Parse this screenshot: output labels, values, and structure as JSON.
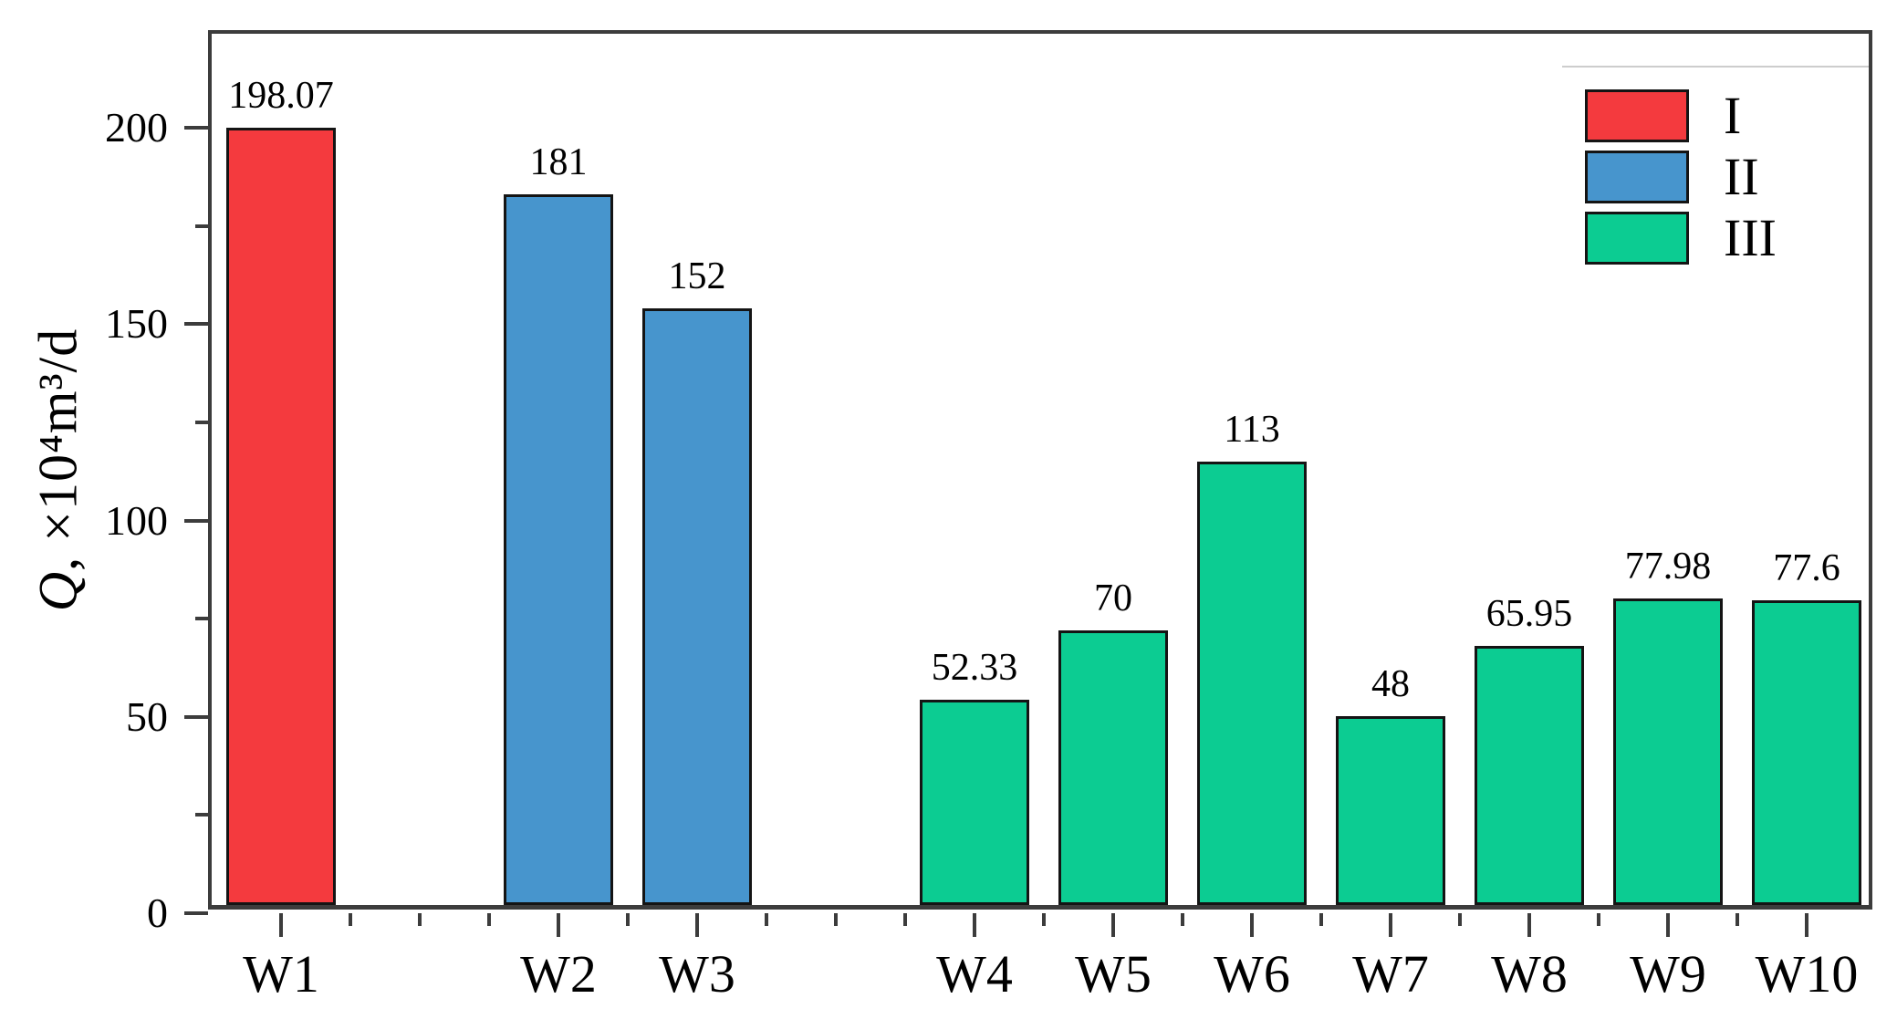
{
  "chart_data": {
    "type": "bar",
    "title": "",
    "ylabel": "Q, ×10⁴m³/d",
    "ylabel_q": "Q",
    "ylabel_rest": ",  ×10⁴m³/d",
    "x_axis": {
      "slots": 12,
      "minor_tick_divisions": 24
    },
    "y_axis": {
      "max": 224,
      "major_ticks": [
        0,
        50,
        100,
        150,
        200
      ],
      "minor_ticks": [
        25,
        75,
        125,
        175
      ],
      "major_tick_labels": [
        "0",
        "50",
        "100",
        "150",
        "200"
      ]
    },
    "categories": [
      "W1",
      "W2",
      "W3",
      "W4",
      "W5",
      "W6",
      "W7",
      "W8",
      "W9",
      "W10"
    ],
    "values": [
      198.07,
      181,
      152,
      52.33,
      70,
      113,
      48,
      65.95,
      77.98,
      77.6
    ],
    "bars": [
      {
        "category": "W1",
        "value": 198.07,
        "label": "198.07",
        "group": "I",
        "slot": 0
      },
      {
        "category": "W2",
        "value": 181,
        "label": "181",
        "group": "II",
        "slot": 2
      },
      {
        "category": "W3",
        "value": 152,
        "label": "152",
        "group": "II",
        "slot": 3
      },
      {
        "category": "W4",
        "value": 52.33,
        "label": "52.33",
        "group": "III",
        "slot": 5
      },
      {
        "category": "W5",
        "value": 70,
        "label": "70",
        "group": "III",
        "slot": 6
      },
      {
        "category": "W6",
        "value": 113,
        "label": "113",
        "group": "III",
        "slot": 7
      },
      {
        "category": "W7",
        "value": 48,
        "label": "48",
        "group": "III",
        "slot": 8
      },
      {
        "category": "W8",
        "value": 65.95,
        "label": "65.95",
        "group": "III",
        "slot": 9
      },
      {
        "category": "W9",
        "value": 77.98,
        "label": "77.98",
        "group": "III",
        "slot": 10
      },
      {
        "category": "W10",
        "value": 77.6,
        "label": "77.6",
        "group": "III",
        "slot": 11
      }
    ],
    "legend": {
      "position": "top-right",
      "entries": [
        {
          "label": "I",
          "color": "#f43a3e"
        },
        {
          "label": "II",
          "color": "#4795cd"
        },
        {
          "label": "III",
          "color": "#0ccc92"
        }
      ]
    },
    "colors": {
      "group_I": "#f43a3e",
      "group_II": "#4795cd",
      "group_III": "#0ccc92",
      "bar_outline": "#141414",
      "axis": "#3c3c3c",
      "text": "#000000"
    },
    "grid": false
  }
}
